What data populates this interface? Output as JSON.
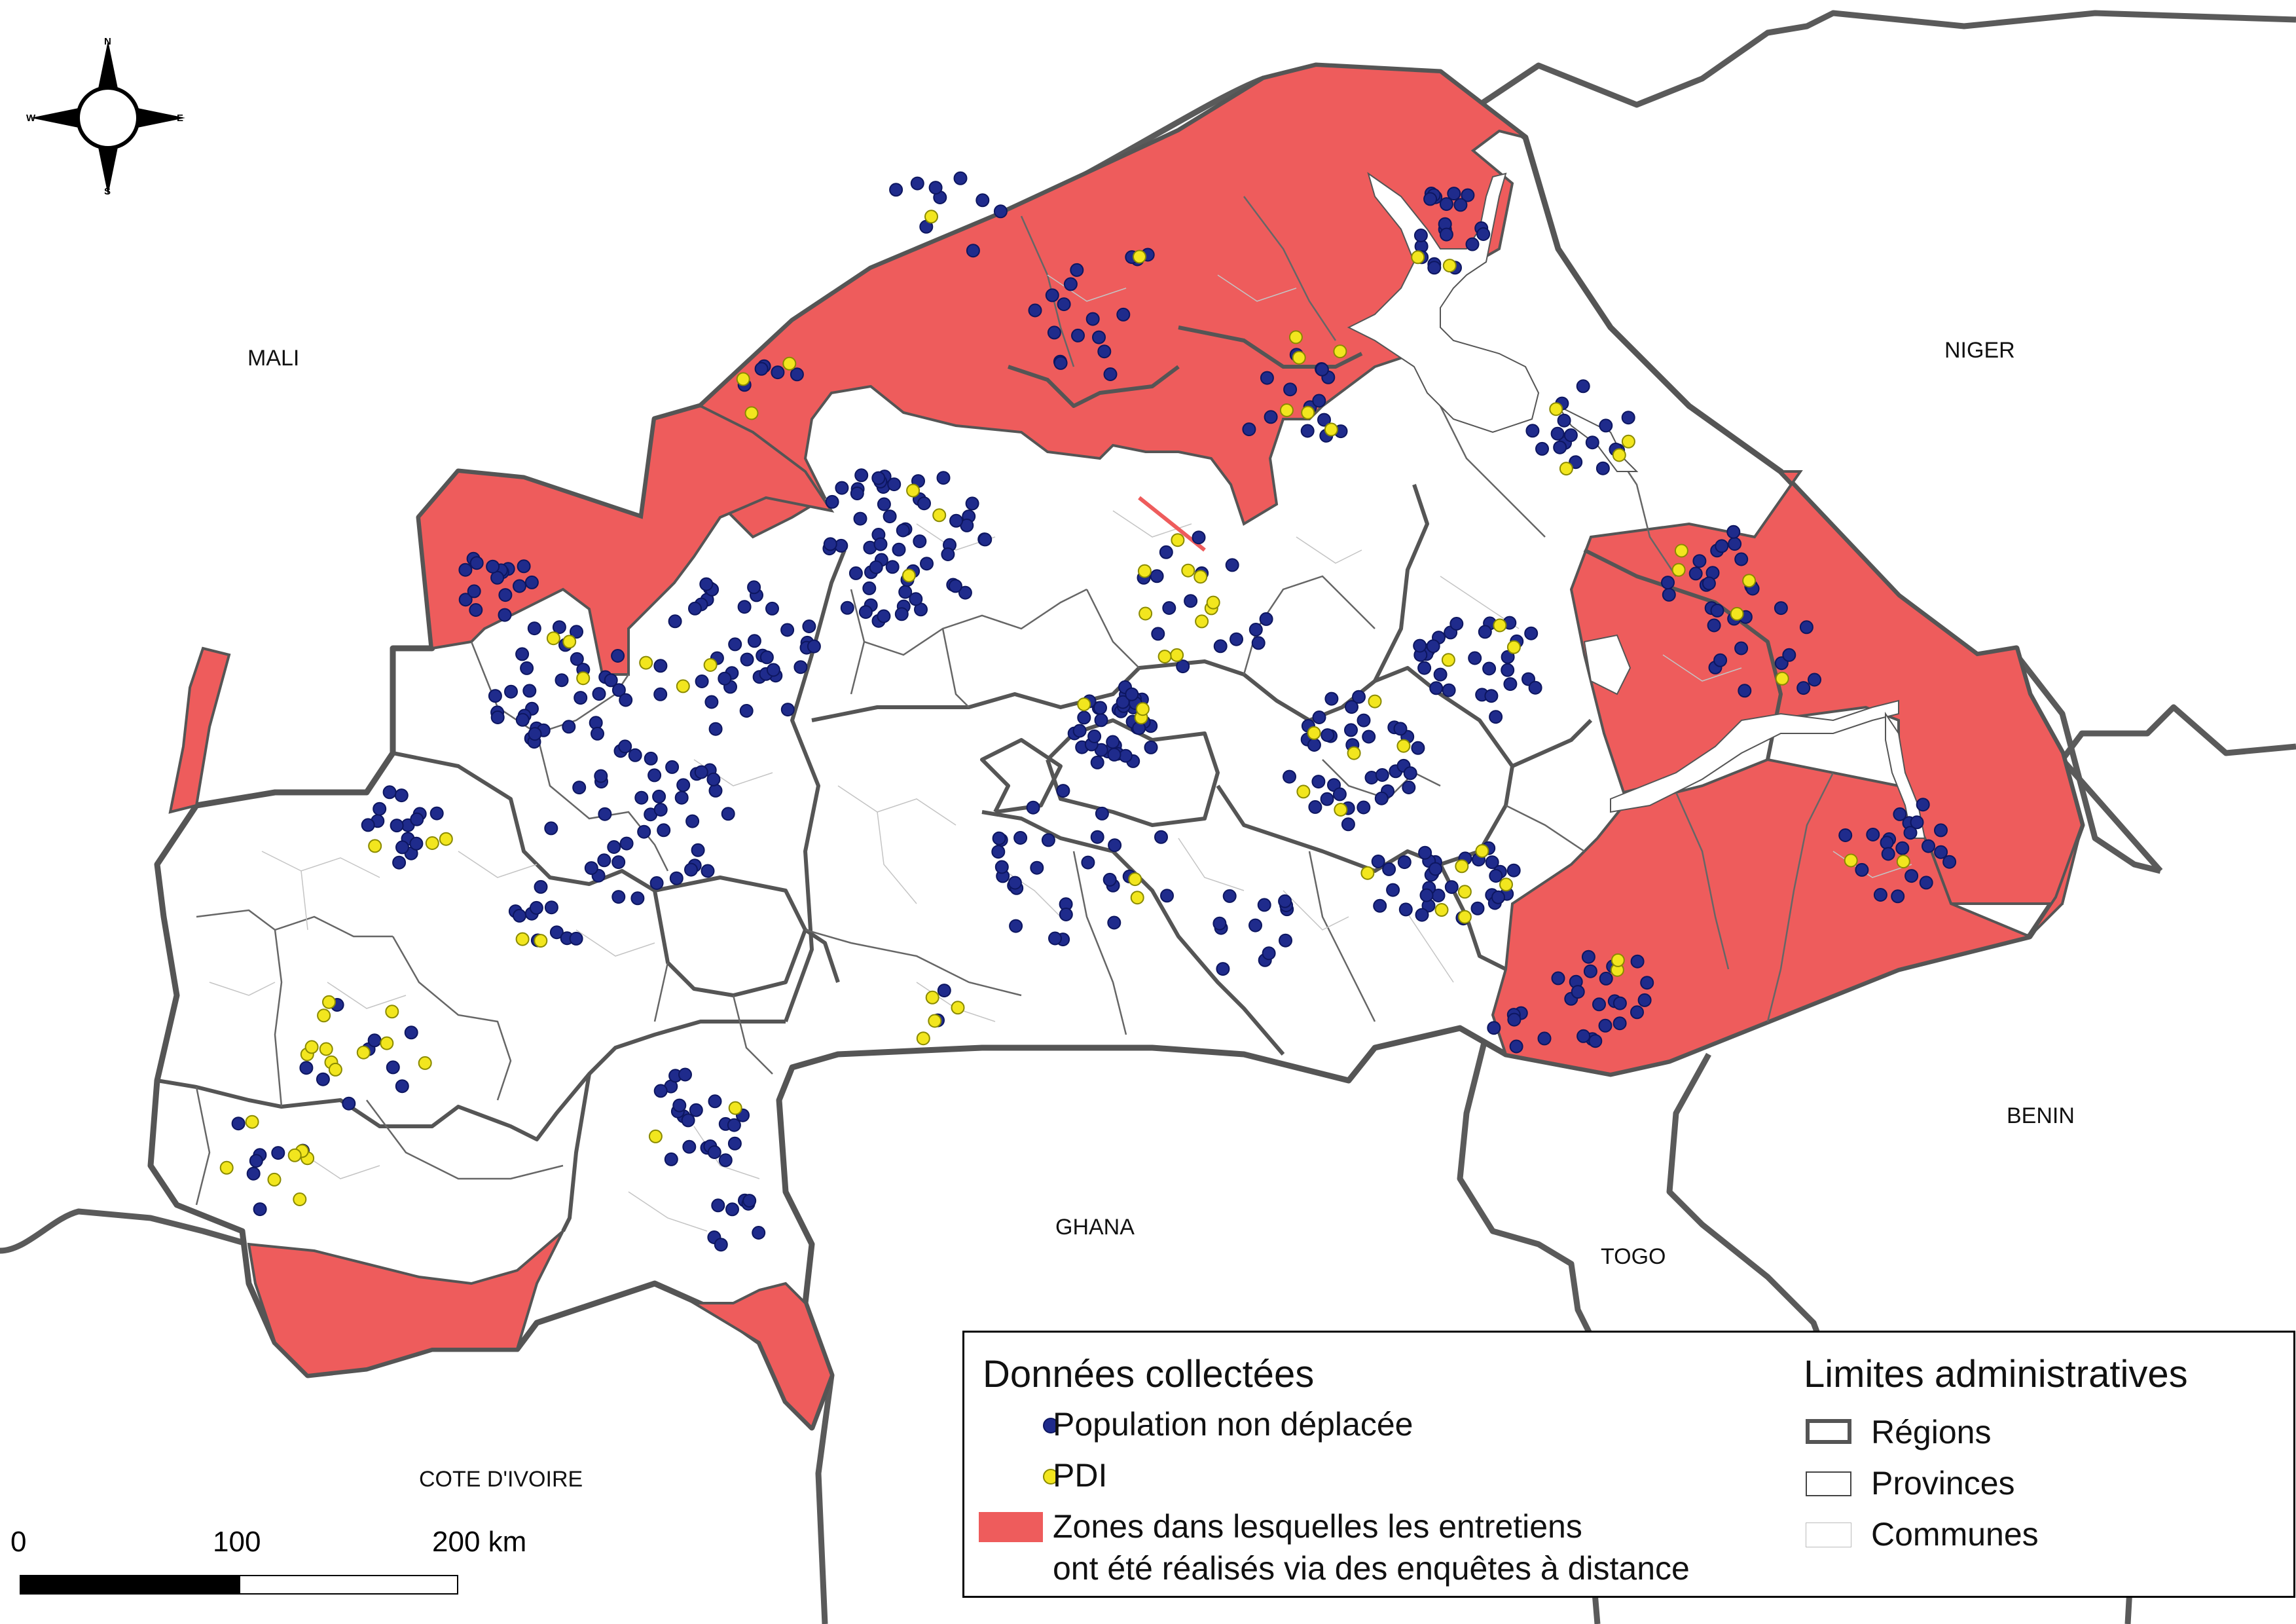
{
  "countries": {
    "mali": "MALI",
    "niger": "NIGER",
    "benin": "BENIN",
    "togo": "TOGO",
    "ghana": "GHANA",
    "cote_divoire": "COTE D'IVOIRE"
  },
  "compass": {
    "n": "N",
    "s": "S",
    "e": "E",
    "w": "W"
  },
  "legend": {
    "data_title": "Données collectées",
    "population": "Population non déplacée",
    "pdi": "PDI",
    "zones_line1": "Zones dans lesquelles les entretiens",
    "zones_line2": "ont été réalisés via des enquêtes à distance",
    "admin_title": "Limites administratives",
    "regions": "Régions",
    "provinces": "Provinces",
    "communes": "Communes"
  },
  "scale": {
    "t0": "0",
    "t100": "100",
    "t200": "200 km"
  },
  "colors": {
    "remote_zone": "#ee5c5c",
    "population_dot": "#1f2b8c",
    "pdi_dot": "#f2e61e",
    "region_border": "#555555",
    "province_border": "#444444",
    "commune_border": "#bbbbbb"
  }
}
